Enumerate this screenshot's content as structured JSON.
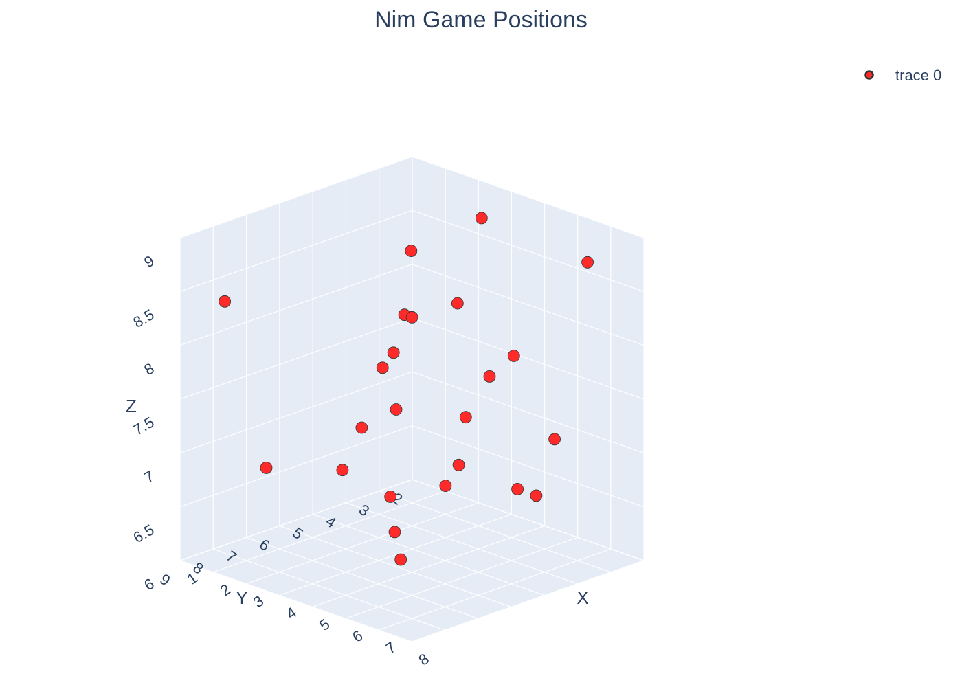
{
  "chart_data": {
    "type": "scatter",
    "title": "Nim Game Positions",
    "xlabel": "X",
    "ylabel": "Y",
    "zlabel": "Z",
    "xlim": [
      1,
      8
    ],
    "ylim": [
      2,
      9
    ],
    "zlim": [
      6,
      9
    ],
    "x_ticks": [
      "1",
      "2",
      "3",
      "4",
      "5",
      "6",
      "7",
      "8"
    ],
    "y_ticks": [
      "2",
      "3",
      "4",
      "5",
      "6",
      "7",
      "8",
      "9"
    ],
    "z_ticks": [
      "6",
      "6.5",
      "7",
      "7.5",
      "8",
      "8.5",
      "9"
    ],
    "legend_position": "top-right",
    "marker_color": "#ff2b2b",
    "marker_edge_color": "#333333",
    "series": [
      {
        "name": "trace 0",
        "points": [
          {
            "x": 1.5,
            "y": 8.15,
            "z": 8.37
          },
          {
            "x": 6.77,
            "y": 2.47,
            "z": 8.69
          },
          {
            "x": 5.4,
            "y": 4.3,
            "z": 9.15
          },
          {
            "x": 7.92,
            "y": 4.61,
            "z": 7.4
          },
          {
            "x": 2.59,
            "y": 3.62,
            "z": 8.47
          },
          {
            "x": 3.66,
            "y": 4.66,
            "z": 8.08
          },
          {
            "x": 3.16,
            "y": 4.39,
            "z": 8.02
          },
          {
            "x": 3.51,
            "y": 3.14,
            "z": 8.03
          },
          {
            "x": 2.63,
            "y": 4.19,
            "z": 7.59
          },
          {
            "x": 3.45,
            "y": 4.93,
            "z": 7.23
          },
          {
            "x": 2.6,
            "y": 5.12,
            "z": 6.99
          },
          {
            "x": 4.26,
            "y": 2.19,
            "z": 7.52
          },
          {
            "x": 3.81,
            "y": 3.19,
            "z": 7.01
          },
          {
            "x": 3.07,
            "y": 4.96,
            "z": 7.58
          },
          {
            "x": 1.64,
            "y": 7.04,
            "z": 6.72
          },
          {
            "x": 4.27,
            "y": 2.93,
            "z": 7.41
          },
          {
            "x": 2.56,
            "y": 5.66,
            "z": 6.65
          },
          {
            "x": 3.61,
            "y": 5.13,
            "z": 6.13
          },
          {
            "x": 4.11,
            "y": 5.76,
            "z": 6.58
          },
          {
            "x": 4.05,
            "y": 3.64,
            "z": 6.64
          },
          {
            "x": 7.56,
            "y": 5.37,
            "z": 6.98
          },
          {
            "x": 3.4,
            "y": 3.39,
            "z": 6.35
          },
          {
            "x": 5.66,
            "y": 2.91,
            "z": 6.45
          },
          {
            "x": 3.82,
            "y": 5.16,
            "z": 5.9
          }
        ]
      }
    ]
  }
}
